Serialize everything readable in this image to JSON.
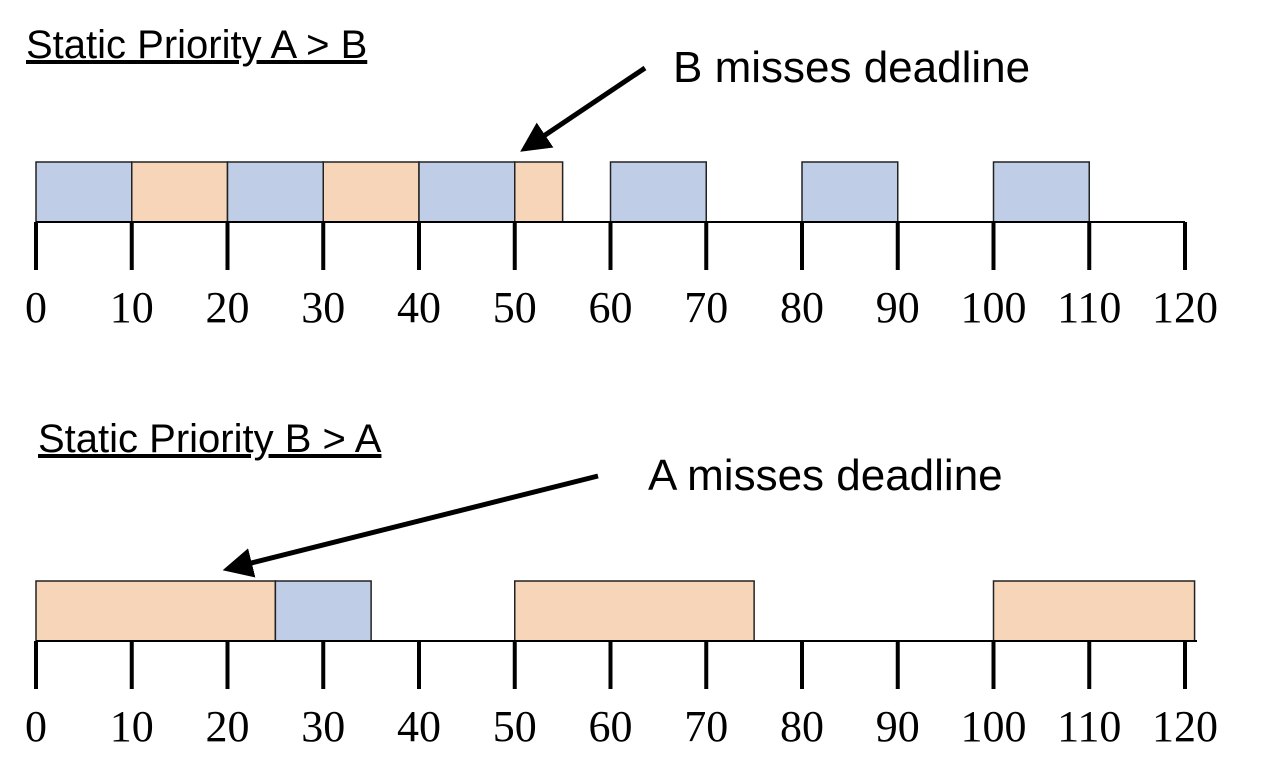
{
  "colors": {
    "A": "#bfcde6",
    "B": "#f6d5b9"
  },
  "ticks": [
    0,
    10,
    20,
    30,
    40,
    50,
    60,
    70,
    80,
    90,
    100,
    110,
    120
  ],
  "timelines": [
    {
      "title": "Static Priority A > B",
      "annotation": "B misses deadline",
      "blocks": [
        {
          "task": "A",
          "start": 0,
          "end": 10
        },
        {
          "task": "B",
          "start": 10,
          "end": 20
        },
        {
          "task": "A",
          "start": 20,
          "end": 30
        },
        {
          "task": "B",
          "start": 30,
          "end": 40
        },
        {
          "task": "A",
          "start": 40,
          "end": 50
        },
        {
          "task": "B",
          "start": 50,
          "end": 55
        },
        {
          "task": "A",
          "start": 60,
          "end": 70
        },
        {
          "task": "A",
          "start": 80,
          "end": 90
        },
        {
          "task": "A",
          "start": 100,
          "end": 110
        }
      ],
      "arrow_target": 51
    },
    {
      "title": "Static Priority B > A",
      "annotation": "A misses deadline",
      "blocks": [
        {
          "task": "B",
          "start": 0,
          "end": 25
        },
        {
          "task": "A",
          "start": 25,
          "end": 35
        },
        {
          "task": "B",
          "start": 50,
          "end": 75
        },
        {
          "task": "B",
          "start": 100,
          "end": 121
        }
      ],
      "arrow_target": 20
    }
  ]
}
